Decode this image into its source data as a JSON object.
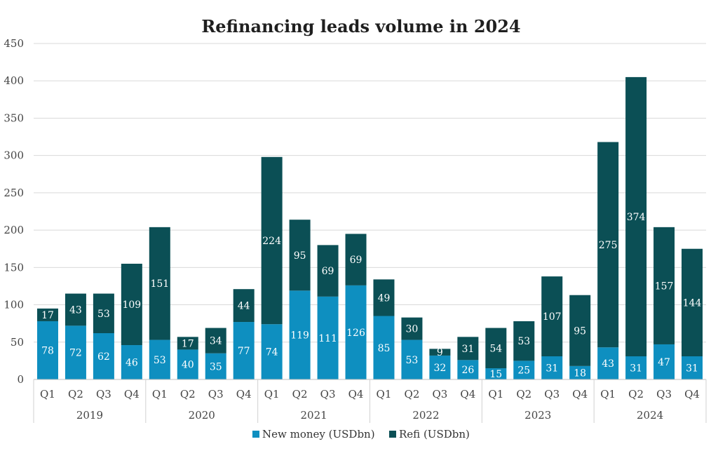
{
  "chart_data": {
    "type": "bar",
    "stacked": true,
    "title": "Refinancing leads volume in 2024",
    "years": [
      "2019",
      "2020",
      "2021",
      "2022",
      "2023",
      "2024"
    ],
    "quarters": [
      "Q1",
      "Q2",
      "Q3",
      "Q4"
    ],
    "categories": [
      "2019 Q1",
      "2019 Q2",
      "2019 Q3",
      "2019 Q4",
      "2020 Q1",
      "2020 Q2",
      "2020 Q3",
      "2020 Q4",
      "2021 Q1",
      "2021 Q2",
      "2021 Q3",
      "2021 Q4",
      "2022 Q1",
      "2022 Q2",
      "2022 Q3",
      "2022 Q4",
      "2023 Q1",
      "2023 Q2",
      "2023 Q3",
      "2023 Q4",
      "2024 Q1",
      "2024 Q2",
      "2024 Q3",
      "2024 Q4"
    ],
    "series": [
      {
        "name": "New money (USDbn)",
        "color": "#0E8FC0",
        "values": [
          78,
          72,
          62,
          46,
          53,
          40,
          35,
          77,
          74,
          119,
          111,
          126,
          85,
          53,
          32,
          26,
          15,
          25,
          31,
          18,
          43,
          31,
          47,
          31
        ]
      },
      {
        "name": "Refi (USDbn)",
        "color": "#0B4F55",
        "values": [
          17,
          43,
          53,
          109,
          151,
          17,
          34,
          44,
          224,
          95,
          69,
          69,
          49,
          30,
          9,
          31,
          54,
          53,
          107,
          95,
          275,
          374,
          157,
          144
        ]
      }
    ],
    "ylim": [
      0,
      450
    ],
    "yticks": [
      0,
      50,
      100,
      150,
      200,
      250,
      300,
      350,
      400,
      450
    ],
    "grid": true,
    "legend": "bottom"
  }
}
